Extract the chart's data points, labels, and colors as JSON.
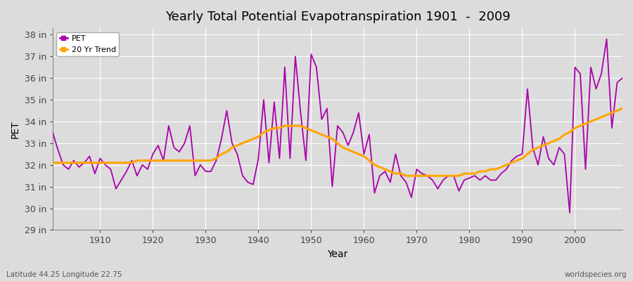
{
  "title": "Yearly Total Potential Evapotranspiration 1901  -  2009",
  "xlabel": "Year",
  "ylabel": "PET",
  "subtitle_left": "Latitude 44.25 Longitude 22.75",
  "subtitle_right": "worldspecies.org",
  "pet_color": "#AA00AA",
  "trend_color": "#FFA500",
  "bg_color": "#DCDCDC",
  "plot_bg_color": "#DCDCDC",
  "ylim_min": 29,
  "ylim_max": 38.3,
  "xlim_min": 1901,
  "xlim_max": 2009,
  "ytick_labels": [
    "29 in",
    "30 in",
    "31 in",
    "32 in",
    "33 in",
    "34 in",
    "35 in",
    "36 in",
    "37 in",
    "38 in"
  ],
  "ytick_values": [
    29,
    30,
    31,
    32,
    33,
    34,
    35,
    36,
    37,
    38
  ],
  "xtick_values": [
    1910,
    1920,
    1930,
    1940,
    1950,
    1960,
    1970,
    1980,
    1990,
    2000
  ],
  "years": [
    1901,
    1902,
    1903,
    1904,
    1905,
    1906,
    1907,
    1908,
    1909,
    1910,
    1911,
    1912,
    1913,
    1914,
    1915,
    1916,
    1917,
    1918,
    1919,
    1920,
    1921,
    1922,
    1923,
    1924,
    1925,
    1926,
    1927,
    1928,
    1929,
    1930,
    1931,
    1932,
    1933,
    1934,
    1935,
    1936,
    1937,
    1938,
    1939,
    1940,
    1941,
    1942,
    1943,
    1944,
    1945,
    1946,
    1947,
    1948,
    1949,
    1950,
    1951,
    1952,
    1953,
    1954,
    1955,
    1956,
    1957,
    1958,
    1959,
    1960,
    1961,
    1962,
    1963,
    1964,
    1965,
    1966,
    1967,
    1968,
    1969,
    1970,
    1971,
    1972,
    1973,
    1974,
    1975,
    1976,
    1977,
    1978,
    1979,
    1980,
    1981,
    1982,
    1983,
    1984,
    1985,
    1986,
    1987,
    1988,
    1989,
    1990,
    1991,
    1992,
    1993,
    1994,
    1995,
    1996,
    1997,
    1998,
    1999,
    2000,
    2001,
    2002,
    2003,
    2004,
    2005,
    2006,
    2007,
    2008,
    2009
  ],
  "pet_values": [
    33.5,
    32.7,
    32.0,
    31.8,
    32.2,
    31.9,
    32.1,
    32.4,
    31.6,
    32.3,
    32.0,
    31.8,
    30.9,
    31.3,
    31.7,
    32.2,
    31.5,
    32.0,
    31.8,
    32.5,
    32.9,
    32.2,
    33.8,
    32.8,
    32.6,
    33.0,
    33.8,
    31.5,
    32.0,
    31.7,
    31.7,
    32.2,
    33.2,
    34.5,
    33.0,
    32.5,
    31.5,
    31.2,
    31.1,
    32.3,
    35.0,
    32.1,
    34.9,
    32.3,
    36.5,
    32.3,
    37.0,
    34.4,
    32.2,
    37.1,
    36.5,
    34.1,
    34.6,
    31.0,
    33.8,
    33.5,
    32.9,
    33.5,
    34.4,
    32.5,
    33.4,
    30.7,
    31.5,
    31.7,
    31.2,
    32.5,
    31.5,
    31.2,
    30.5,
    31.8,
    31.6,
    31.5,
    31.3,
    30.9,
    31.3,
    31.5,
    31.5,
    30.8,
    31.3,
    31.4,
    31.5,
    31.3,
    31.5,
    31.3,
    31.3,
    31.6,
    31.8,
    32.2,
    32.4,
    32.5,
    35.5,
    32.8,
    32.0,
    33.3,
    32.3,
    32.0,
    32.8,
    32.5,
    29.8,
    36.5,
    36.2,
    31.8,
    36.5,
    35.5,
    36.2,
    37.8,
    33.7,
    35.8,
    36.0
  ],
  "trend_values": [
    32.1,
    32.1,
    32.1,
    32.1,
    32.1,
    32.1,
    32.1,
    32.1,
    32.1,
    32.1,
    32.1,
    32.1,
    32.1,
    32.1,
    32.1,
    32.1,
    32.2,
    32.2,
    32.2,
    32.2,
    32.2,
    32.2,
    32.2,
    32.2,
    32.2,
    32.2,
    32.2,
    32.2,
    32.2,
    32.2,
    32.2,
    32.3,
    32.5,
    32.6,
    32.8,
    32.9,
    33.0,
    33.1,
    33.2,
    33.3,
    33.5,
    33.6,
    33.7,
    33.7,
    33.8,
    33.8,
    33.8,
    33.8,
    33.7,
    33.6,
    33.5,
    33.4,
    33.3,
    33.2,
    33.0,
    32.8,
    32.7,
    32.6,
    32.5,
    32.4,
    32.2,
    32.0,
    31.9,
    31.8,
    31.7,
    31.6,
    31.6,
    31.5,
    31.5,
    31.5,
    31.5,
    31.5,
    31.5,
    31.5,
    31.5,
    31.5,
    31.5,
    31.5,
    31.6,
    31.6,
    31.6,
    31.7,
    31.7,
    31.8,
    31.8,
    31.9,
    32.0,
    32.1,
    32.2,
    32.3,
    32.5,
    32.7,
    32.8,
    32.9,
    33.0,
    33.1,
    33.2,
    33.4,
    33.5,
    33.7,
    33.8,
    33.9,
    34.0,
    34.1,
    34.2,
    34.3,
    34.4,
    34.5,
    34.6
  ]
}
